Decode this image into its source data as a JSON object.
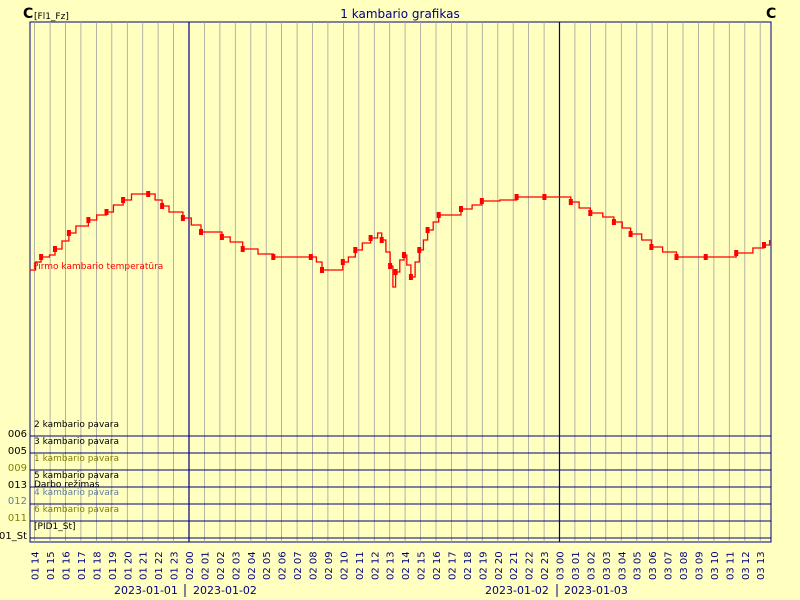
{
  "chart_data": {
    "type": "line",
    "title": "1 kambario grafikas",
    "unit_left": "C",
    "unit_right": "C",
    "unit_sub": "[Fl1_Fz]",
    "series": [
      {
        "name": "Pirmo kambario temperatūra",
        "color": "#ff0000",
        "points": [
          [
            0,
            270
          ],
          [
            0.4,
            262
          ],
          [
            0.8,
            257
          ],
          [
            1.4,
            255
          ],
          [
            1.8,
            249
          ],
          [
            2.3,
            241
          ],
          [
            2.8,
            233
          ],
          [
            3.3,
            226
          ],
          [
            4.2,
            220
          ],
          [
            4.8,
            215
          ],
          [
            5.5,
            212
          ],
          [
            6.0,
            205
          ],
          [
            6.7,
            200
          ],
          [
            7.3,
            194
          ],
          [
            8.5,
            194
          ],
          [
            9.0,
            200
          ],
          [
            9.5,
            206
          ],
          [
            10.0,
            212
          ],
          [
            11.0,
            218
          ],
          [
            11.6,
            225
          ],
          [
            12.3,
            232
          ],
          [
            13.3,
            232
          ],
          [
            13.8,
            237
          ],
          [
            14.4,
            242
          ],
          [
            15.3,
            249
          ],
          [
            16.4,
            254
          ],
          [
            17.5,
            257
          ],
          [
            19.0,
            257
          ],
          [
            20.2,
            257
          ],
          [
            20.6,
            262
          ],
          [
            21.0,
            270
          ],
          [
            22.0,
            270
          ],
          [
            22.5,
            262
          ],
          [
            22.9,
            257
          ],
          [
            23.4,
            250
          ],
          [
            23.9,
            243
          ],
          [
            24.5,
            238
          ],
          [
            25.0,
            233
          ],
          [
            25.3,
            240
          ],
          [
            25.6,
            252
          ],
          [
            25.9,
            266
          ],
          [
            26.1,
            287
          ],
          [
            26.3,
            272
          ],
          [
            26.6,
            260
          ],
          [
            26.9,
            255
          ],
          [
            27.1,
            265
          ],
          [
            27.4,
            277
          ],
          [
            27.7,
            262
          ],
          [
            28.0,
            250
          ],
          [
            28.3,
            240
          ],
          [
            28.6,
            230
          ],
          [
            29.0,
            222
          ],
          [
            29.4,
            215
          ],
          [
            30.4,
            215
          ],
          [
            31.0,
            209
          ],
          [
            31.8,
            205
          ],
          [
            32.5,
            201
          ],
          [
            33.8,
            200
          ],
          [
            35.0,
            197
          ],
          [
            36.0,
            197
          ],
          [
            37.0,
            197
          ],
          [
            38.0,
            197
          ],
          [
            38.9,
            202
          ],
          [
            39.5,
            208
          ],
          [
            40.3,
            213
          ],
          [
            41.2,
            217
          ],
          [
            42.0,
            222
          ],
          [
            42.6,
            228
          ],
          [
            43.2,
            234
          ],
          [
            44.0,
            240
          ],
          [
            44.7,
            247
          ],
          [
            45.5,
            252
          ],
          [
            46.5,
            257
          ],
          [
            47.6,
            257
          ],
          [
            48.6,
            257
          ],
          [
            49.8,
            257
          ],
          [
            50.8,
            253
          ],
          [
            52.0,
            248
          ],
          [
            52.8,
            245
          ],
          [
            53.2,
            240
          ]
        ]
      }
    ],
    "x_tick_labels": [
      "01 14",
      "01 15",
      "01 16",
      "01 17",
      "01 18",
      "01 19",
      "01 20",
      "01 21",
      "01 22",
      "01 23",
      "02 00",
      "02 01",
      "02 02",
      "02 03",
      "02 04",
      "02 05",
      "02 06",
      "02 07",
      "02 08",
      "02 09",
      "02 10",
      "02 11",
      "02 12",
      "02 13",
      "02 14",
      "02 15",
      "02 16",
      "02 17",
      "02 18",
      "02 19",
      "02 20",
      "02 21",
      "02 22",
      "02 23",
      "03 00",
      "03 01",
      "03 02",
      "03 03",
      "03 04",
      "03 05",
      "03 06",
      "03 07",
      "03 08",
      "03 09",
      "03 10",
      "03 11",
      "03 12",
      "03 13"
    ],
    "date_labels": [
      "2023-01-01",
      "2023-01-02",
      "2023-01-02",
      "2023-01-03"
    ],
    "digital_lanes": [
      {
        "num": "006",
        "label": "2 kambario pavara",
        "color": "#000000"
      },
      {
        "num": "005",
        "label": "3 kambario pavara",
        "color": "#000000"
      },
      {
        "num": "009",
        "label": "1  kambario pavara",
        "color": "#808000"
      },
      {
        "num": "013",
        "label": "5 kambario pavara",
        "color": "#000000"
      },
      {
        "num": "",
        "label": "Darbo režimas",
        "color": "#000000"
      },
      {
        "num": "012",
        "label": "4 kambario pavara",
        "color": "#6080a0"
      },
      {
        "num": "011",
        "label": "6 kambario pavara",
        "color": "#808000"
      },
      {
        "num": "01_St",
        "label": "[PID1_St]",
        "color": "#000000"
      }
    ]
  }
}
